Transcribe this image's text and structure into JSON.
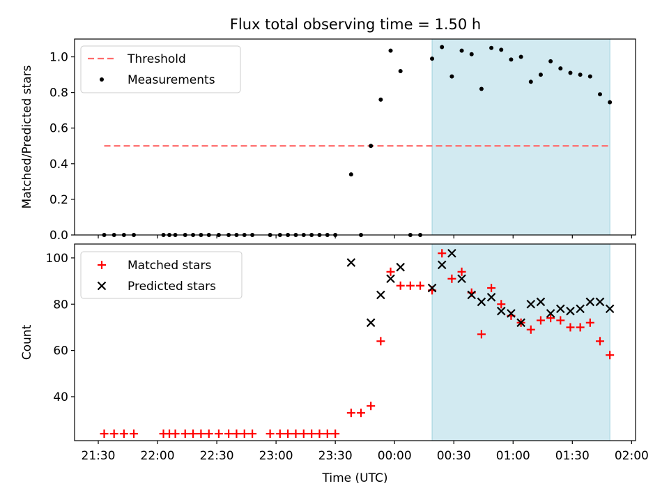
{
  "chart_data": [
    {
      "type": "scatter",
      "title": "Flux total observing time = 1.50 h",
      "xlabel": "",
      "ylabel": "Matched/Predicted stars",
      "ylim": [
        0,
        1.1
      ],
      "yticks": [
        0.0,
        0.2,
        0.4,
        0.6,
        0.8,
        1.0
      ],
      "ytick_labels": [
        "0.0",
        "0.2",
        "0.4",
        "0.6",
        "0.8",
        "1.0"
      ],
      "grid": false,
      "legend": "top-left",
      "shaded_span": {
        "from": "00:19",
        "to": "01:49",
        "color": "#add8e6"
      },
      "series": [
        {
          "name": "Threshold",
          "style": "dashed-line",
          "color": "#ff6b6b",
          "x": [
            "21:33",
            "01:49"
          ],
          "values": [
            0.5,
            0.5
          ]
        },
        {
          "name": "Measurements",
          "style": "dot",
          "color": "#000000",
          "x": [
            "21:33",
            "21:38",
            "21:43",
            "21:48",
            "22:03",
            "22:06",
            "22:09",
            "22:14",
            "22:18",
            "22:22",
            "22:26",
            "22:31",
            "22:36",
            "22:40",
            "22:44",
            "22:48",
            "22:57",
            "23:02",
            "23:06",
            "23:10",
            "23:14",
            "23:18",
            "23:22",
            "23:26",
            "23:30",
            "23:38",
            "23:43",
            "23:48",
            "23:53",
            "23:58",
            "00:03",
            "00:08",
            "00:13",
            "00:19",
            "00:24",
            "00:29",
            "00:34",
            "00:39",
            "00:44",
            "00:49",
            "00:54",
            "00:59",
            "01:04",
            "01:09",
            "01:14",
            "01:19",
            "01:24",
            "01:29",
            "01:34",
            "01:39",
            "01:44",
            "01:49"
          ],
          "values": [
            0,
            0,
            0,
            0,
            0,
            0,
            0,
            0,
            0,
            0,
            0,
            0,
            0,
            0,
            0,
            0,
            0,
            0,
            0,
            0,
            0,
            0,
            0,
            0,
            0,
            0.34,
            0,
            0.5,
            0.76,
            1.035,
            0.92,
            0,
            0,
            0.99,
            1.055,
            0.89,
            1.035,
            1.015,
            0.82,
            1.05,
            1.04,
            0.985,
            1.0,
            0.86,
            0.9,
            0.975,
            0.935,
            0.91,
            0.9,
            0.89,
            0.79,
            0.745
          ]
        }
      ]
    },
    {
      "type": "scatter",
      "title": "",
      "xlabel": "Time (UTC)",
      "ylabel": "Count",
      "ylim": [
        21,
        106
      ],
      "yticks": [
        40,
        60,
        80,
        100
      ],
      "ytick_labels": [
        "40",
        "60",
        "80",
        "100"
      ],
      "x_range": [
        "21:18",
        "02:02"
      ],
      "xticks": [
        "21:30",
        "22:00",
        "22:30",
        "23:00",
        "23:30",
        "00:00",
        "00:30",
        "01:00",
        "01:30",
        "02:00"
      ],
      "xtick_labels": [
        "21:30",
        "22:00",
        "22:30",
        "23:00",
        "23:30",
        "00:00",
        "00:30",
        "01:00",
        "01:30",
        "02:00"
      ],
      "grid": false,
      "legend": "top-left",
      "shaded_span": {
        "from": "00:19",
        "to": "01:49",
        "color": "#add8e6"
      },
      "series": [
        {
          "name": "Matched stars",
          "style": "plus",
          "color": "#ff0000",
          "x": [
            "21:33",
            "21:38",
            "21:43",
            "21:48",
            "22:03",
            "22:06",
            "22:09",
            "22:14",
            "22:18",
            "22:22",
            "22:26",
            "22:31",
            "22:36",
            "22:40",
            "22:44",
            "22:48",
            "22:57",
            "23:02",
            "23:06",
            "23:10",
            "23:14",
            "23:18",
            "23:22",
            "23:26",
            "23:30",
            "23:38",
            "23:43",
            "23:48",
            "23:53",
            "23:58",
            "00:03",
            "00:08",
            "00:13",
            "00:19",
            "00:24",
            "00:29",
            "00:34",
            "00:39",
            "00:44",
            "00:49",
            "00:54",
            "00:59",
            "01:04",
            "01:09",
            "01:14",
            "01:19",
            "01:24",
            "01:29",
            "01:34",
            "01:39",
            "01:44",
            "01:49"
          ],
          "values": [
            24,
            24,
            24,
            24,
            24,
            24,
            24,
            24,
            24,
            24,
            24,
            24,
            24,
            24,
            24,
            24,
            24,
            24,
            24,
            24,
            24,
            24,
            24,
            24,
            24,
            33,
            33,
            36,
            64,
            94,
            88,
            88,
            88,
            86,
            102,
            91,
            94,
            85,
            67,
            87,
            80,
            75,
            72,
            69,
            73,
            74,
            73,
            70,
            70,
            72,
            64,
            58
          ]
        },
        {
          "name": "Predicted stars",
          "style": "x",
          "color": "#000000",
          "x": [
            "23:38",
            "23:48",
            "23:53",
            "23:58",
            "00:03",
            "00:19",
            "00:24",
            "00:29",
            "00:34",
            "00:39",
            "00:44",
            "00:49",
            "00:54",
            "00:59",
            "01:04",
            "01:09",
            "01:14",
            "01:19",
            "01:24",
            "01:29",
            "01:34",
            "01:39",
            "01:44",
            "01:49"
          ],
          "values": [
            98,
            72,
            84,
            91,
            96,
            87,
            97,
            102,
            91,
            84,
            81,
            83,
            77,
            76,
            72,
            80,
            81,
            76,
            78,
            77,
            78,
            81,
            81,
            78
          ]
        }
      ]
    }
  ]
}
